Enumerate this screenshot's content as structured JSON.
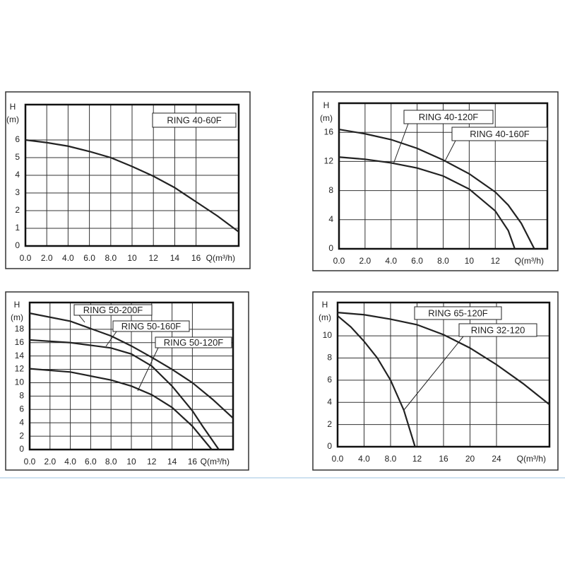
{
  "chart_data": [
    {
      "type": "line",
      "y_label": "H",
      "y_unit": "(m)",
      "x_label": "Q(m³/h)",
      "xlim": [
        0,
        20
      ],
      "ylim": [
        0,
        8
      ],
      "xticks": [
        {
          "value": 0,
          "label": "0.0"
        },
        {
          "value": 2,
          "label": "2.0"
        },
        {
          "value": 4,
          "label": "4.0"
        },
        {
          "value": 6,
          "label": "6.0"
        },
        {
          "value": 8,
          "label": "8.0"
        },
        10,
        12,
        14,
        16
      ],
      "yticks": [
        0,
        1,
        2,
        3,
        4,
        5,
        6
      ],
      "grid": true,
      "series": [
        {
          "name": "RING 40-60F",
          "color": "#222",
          "x": [
            0,
            2,
            4,
            6,
            8,
            10,
            12,
            14,
            16,
            18,
            20
          ],
          "values": [
            6,
            5.85,
            5.65,
            5.35,
            5.0,
            4.5,
            3.95,
            3.3,
            2.5,
            1.7,
            0.8
          ]
        }
      ]
    },
    {
      "type": "line",
      "y_label": "H",
      "y_unit": "(m)",
      "x_label": "Q(m³/h)",
      "xlim": [
        0,
        16
      ],
      "ylim": [
        0,
        20
      ],
      "xticks": [
        {
          "value": 0,
          "label": "0.0"
        },
        {
          "value": 2,
          "label": "2.0"
        },
        {
          "value": 4,
          "label": "4.0"
        },
        {
          "value": 6,
          "label": "6.0"
        },
        {
          "value": 8,
          "label": "8.0"
        },
        10,
        12
      ],
      "yticks": [
        0,
        4,
        8,
        12,
        16
      ],
      "grid": true,
      "series": [
        {
          "name": "RING 40-120F",
          "color": "#222",
          "x": [
            0,
            2,
            4,
            6,
            8,
            10,
            12,
            13,
            13.5
          ],
          "values": [
            12.6,
            12.3,
            11.8,
            11.1,
            10.0,
            8.2,
            5.2,
            2.5,
            0
          ]
        },
        {
          "name": "RING 40-160F",
          "color": "#222",
          "x": [
            0,
            2,
            4,
            6,
            8,
            10,
            12,
            13,
            14,
            15
          ],
          "values": [
            16.4,
            15.8,
            15,
            13.8,
            12.2,
            10.3,
            7.8,
            6,
            3.5,
            0
          ]
        }
      ]
    },
    {
      "type": "line",
      "y_label": "H",
      "y_unit": "(m)",
      "x_label": "Q(m³/h)",
      "xlim": [
        0,
        20
      ],
      "ylim": [
        0,
        22
      ],
      "xticks": [
        {
          "value": 0,
          "label": "0.0"
        },
        {
          "value": 2,
          "label": "2.0"
        },
        {
          "value": 4,
          "label": "4.0"
        },
        {
          "value": 6,
          "label": "6.0"
        },
        {
          "value": 8,
          "label": "8.0"
        },
        10,
        12,
        14,
        16
      ],
      "yticks": [
        0,
        2,
        4,
        6,
        8,
        10,
        12,
        14,
        16,
        18
      ],
      "grid": true,
      "series": [
        {
          "name": "RING 50-200F",
          "color": "#222",
          "x": [
            0,
            4,
            8,
            10,
            12,
            14,
            16,
            18,
            20
          ],
          "values": [
            20.4,
            19.2,
            17,
            15.5,
            13.8,
            12,
            10,
            7.5,
            4.7
          ]
        },
        {
          "name": "RING 50-160F",
          "color": "#222",
          "x": [
            0,
            4,
            8,
            10,
            12,
            14,
            16,
            17,
            18.6
          ],
          "values": [
            16.4,
            16,
            15.2,
            14.3,
            12.5,
            9.5,
            5.8,
            3.5,
            0
          ]
        },
        {
          "name": "RING 50-120F",
          "color": "#222",
          "x": [
            0,
            4,
            8,
            10,
            12,
            14,
            16,
            17.9
          ],
          "values": [
            12.1,
            11.6,
            10.4,
            9.5,
            8.2,
            6.3,
            3.5,
            0
          ]
        }
      ]
    },
    {
      "type": "line",
      "y_label": "H",
      "y_unit": "(m)",
      "x_label": "Q(m³/h)",
      "xlim": [
        0,
        32
      ],
      "ylim": [
        0,
        13
      ],
      "xticks": [
        {
          "value": 0,
          "label": "0.0"
        },
        {
          "value": 4,
          "label": "4.0"
        },
        {
          "value": 8,
          "label": "8.0"
        },
        12,
        16,
        20,
        24
      ],
      "yticks": [
        0,
        2,
        4,
        6,
        8,
        10
      ],
      "grid": true,
      "series": [
        {
          "name": "RING 65-120F",
          "color": "#222",
          "x": [
            0,
            4,
            8,
            12,
            16,
            20,
            24,
            28,
            32
          ],
          "values": [
            12.1,
            11.9,
            11.5,
            11,
            10.1,
            8.9,
            7.4,
            5.7,
            3.8
          ]
        },
        {
          "name": "RING 32-120",
          "color": "#222",
          "x": [
            0,
            2,
            4,
            6,
            8,
            10,
            11.7
          ],
          "values": [
            11.8,
            10.8,
            9.5,
            8,
            6,
            3.3,
            0
          ]
        }
      ]
    }
  ]
}
